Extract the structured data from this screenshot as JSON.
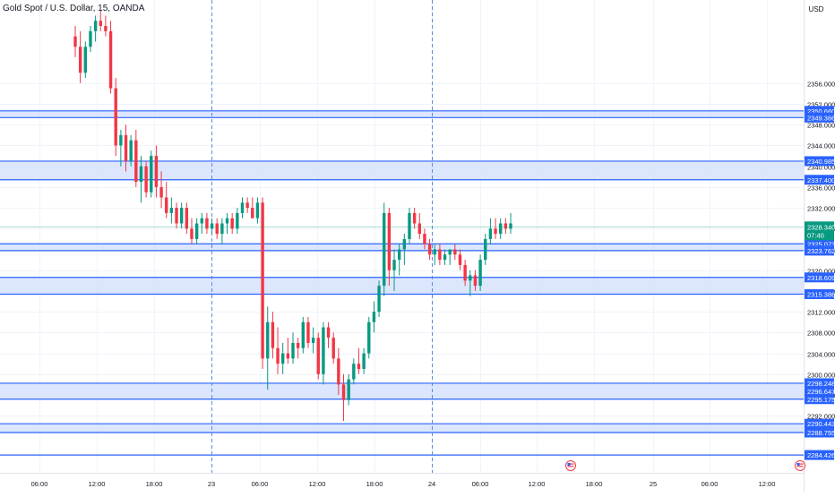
{
  "symbol": {
    "title": "Gold Spot / U.S. Dollar, 15, OANDA"
  },
  "currency": "USD",
  "colors": {
    "up": "#089981",
    "down": "#f23645",
    "zone_fill": "#d6e2fb",
    "zone_line": "#2962ff",
    "label_bg": "#2962ff",
    "price_label_bg": "#089981",
    "grid": "#f0f3fa",
    "session_line": "#5b8cdf",
    "axis_text": "#131722"
  },
  "chart_data": {
    "type": "candlestick",
    "title": "Gold Spot / U.S. Dollar, 15, OANDA",
    "ylim": [
      2281,
      2372
    ],
    "y_ticks": [
      2292,
      2296,
      2300,
      2304,
      2308,
      2312,
      2316,
      2320,
      2324,
      2328,
      2332,
      2336,
      2340,
      2344,
      2348,
      2352,
      2356
    ],
    "x_ticks": [
      "06:00",
      "12:00",
      "18:00",
      "23",
      "06:00",
      "12:00",
      "18:00",
      "24",
      "06:00",
      "12:00",
      "18:00",
      "25",
      "06:00",
      "12:00"
    ],
    "session_separators": [
      "23",
      "24"
    ],
    "last_price": "2328.340",
    "countdown": "07:40",
    "zones": [
      {
        "label_top": "2350.660",
        "label_bottom": "2349.366",
        "top": 2350.66,
        "bottom": 2349.366
      },
      {
        "label_top": "2340.985",
        "label_bottom": "2337.400",
        "top": 2340.985,
        "bottom": 2337.4
      },
      {
        "label_top": "2325.073",
        "label_bottom": "2323.762",
        "top": 2325.073,
        "bottom": 2323.762
      },
      {
        "label_top": "2318.609",
        "label_bottom": "2315.386",
        "top": 2318.609,
        "bottom": 2315.386
      },
      {
        "label_top": "2298.248",
        "label_bottom": "2295.175",
        "top": 2298.248,
        "bottom": 2295.175
      },
      {
        "label_top": "2290.443",
        "label_bottom": "2288.755",
        "top": 2290.443,
        "bottom": 2288.755
      },
      {
        "label_top": "2284.426",
        "label_bottom": "",
        "top": 2284.426,
        "bottom": 2284.426
      }
    ],
    "extra_label": "2296.647",
    "event_icons": [
      "us-flag-icon",
      "us-flag-icon"
    ],
    "candles": [
      {
        "o": 2365,
        "h": 2367,
        "l": 2361,
        "c": 2363
      },
      {
        "o": 2363,
        "h": 2366,
        "l": 2356,
        "c": 2358
      },
      {
        "o": 2358,
        "h": 2364,
        "l": 2357,
        "c": 2363
      },
      {
        "o": 2363,
        "h": 2367,
        "l": 2362,
        "c": 2366
      },
      {
        "o": 2366,
        "h": 2369,
        "l": 2364,
        "c": 2368
      },
      {
        "o": 2368,
        "h": 2370,
        "l": 2366,
        "c": 2367
      },
      {
        "o": 2367,
        "h": 2369,
        "l": 2365,
        "c": 2366
      },
      {
        "o": 2366,
        "h": 2368,
        "l": 2354,
        "c": 2355
      },
      {
        "o": 2355,
        "h": 2357,
        "l": 2342,
        "c": 2344
      },
      {
        "o": 2344,
        "h": 2347,
        "l": 2340,
        "c": 2346
      },
      {
        "o": 2346,
        "h": 2348,
        "l": 2339,
        "c": 2341
      },
      {
        "o": 2341,
        "h": 2346,
        "l": 2340,
        "c": 2345
      },
      {
        "o": 2345,
        "h": 2347,
        "l": 2336,
        "c": 2337
      },
      {
        "o": 2337,
        "h": 2342,
        "l": 2333,
        "c": 2340
      },
      {
        "o": 2340,
        "h": 2341,
        "l": 2334,
        "c": 2335
      },
      {
        "o": 2335,
        "h": 2343,
        "l": 2334,
        "c": 2342
      },
      {
        "o": 2342,
        "h": 2344,
        "l": 2334,
        "c": 2336
      },
      {
        "o": 2336,
        "h": 2339,
        "l": 2332,
        "c": 2334
      },
      {
        "o": 2334,
        "h": 2337,
        "l": 2330,
        "c": 2331
      },
      {
        "o": 2331,
        "h": 2334,
        "l": 2329,
        "c": 2332
      },
      {
        "o": 2332,
        "h": 2333,
        "l": 2328,
        "c": 2329
      },
      {
        "o": 2329,
        "h": 2333,
        "l": 2328,
        "c": 2332
      },
      {
        "o": 2332,
        "h": 2333,
        "l": 2327,
        "c": 2328
      },
      {
        "o": 2328,
        "h": 2330,
        "l": 2325,
        "c": 2326
      },
      {
        "o": 2326,
        "h": 2330,
        "l": 2325,
        "c": 2329
      },
      {
        "o": 2329,
        "h": 2331,
        "l": 2327,
        "c": 2330
      },
      {
        "o": 2330,
        "h": 2331,
        "l": 2327,
        "c": 2328
      },
      {
        "o": 2328,
        "h": 2330,
        "l": 2327,
        "c": 2329
      },
      {
        "o": 2329,
        "h": 2330,
        "l": 2326,
        "c": 2327
      },
      {
        "o": 2327,
        "h": 2330,
        "l": 2325,
        "c": 2329
      },
      {
        "o": 2329,
        "h": 2331,
        "l": 2327,
        "c": 2330
      },
      {
        "o": 2330,
        "h": 2331,
        "l": 2327,
        "c": 2328
      },
      {
        "o": 2328,
        "h": 2332,
        "l": 2327,
        "c": 2331
      },
      {
        "o": 2331,
        "h": 2334,
        "l": 2330,
        "c": 2333
      },
      {
        "o": 2333,
        "h": 2334,
        "l": 2331,
        "c": 2332
      },
      {
        "o": 2332,
        "h": 2334,
        "l": 2330,
        "c": 2330
      },
      {
        "o": 2330,
        "h": 2334,
        "l": 2329,
        "c": 2333
      },
      {
        "o": 2333,
        "h": 2334,
        "l": 2301,
        "c": 2303
      },
      {
        "o": 2303,
        "h": 2313,
        "l": 2297,
        "c": 2310
      },
      {
        "o": 2310,
        "h": 2312,
        "l": 2303,
        "c": 2305
      },
      {
        "o": 2305,
        "h": 2309,
        "l": 2300,
        "c": 2302
      },
      {
        "o": 2302,
        "h": 2306,
        "l": 2300,
        "c": 2304
      },
      {
        "o": 2304,
        "h": 2307,
        "l": 2302,
        "c": 2303
      },
      {
        "o": 2303,
        "h": 2308,
        "l": 2302,
        "c": 2306
      },
      {
        "o": 2306,
        "h": 2307,
        "l": 2303,
        "c": 2305
      },
      {
        "o": 2305,
        "h": 2311,
        "l": 2304,
        "c": 2310
      },
      {
        "o": 2310,
        "h": 2311,
        "l": 2305,
        "c": 2306
      },
      {
        "o": 2306,
        "h": 2309,
        "l": 2304,
        "c": 2307
      },
      {
        "o": 2307,
        "h": 2308,
        "l": 2299,
        "c": 2300
      },
      {
        "o": 2300,
        "h": 2310,
        "l": 2298,
        "c": 2309
      },
      {
        "o": 2309,
        "h": 2310,
        "l": 2305,
        "c": 2307
      },
      {
        "o": 2307,
        "h": 2308,
        "l": 2302,
        "c": 2303
      },
      {
        "o": 2303,
        "h": 2305,
        "l": 2296,
        "c": 2298
      },
      {
        "o": 2298,
        "h": 2300,
        "l": 2291,
        "c": 2295
      },
      {
        "o": 2295,
        "h": 2300,
        "l": 2294,
        "c": 2299
      },
      {
        "o": 2299,
        "h": 2303,
        "l": 2298,
        "c": 2302
      },
      {
        "o": 2302,
        "h": 2305,
        "l": 2300,
        "c": 2301
      },
      {
        "o": 2301,
        "h": 2305,
        "l": 2300,
        "c": 2304
      },
      {
        "o": 2304,
        "h": 2311,
        "l": 2303,
        "c": 2310
      },
      {
        "o": 2310,
        "h": 2314,
        "l": 2308,
        "c": 2312
      },
      {
        "o": 2312,
        "h": 2318,
        "l": 2311,
        "c": 2317
      },
      {
        "o": 2317,
        "h": 2333,
        "l": 2315,
        "c": 2331
      },
      {
        "o": 2331,
        "h": 2332,
        "l": 2317,
        "c": 2320
      },
      {
        "o": 2320,
        "h": 2324,
        "l": 2316,
        "c": 2322
      },
      {
        "o": 2322,
        "h": 2325,
        "l": 2319,
        "c": 2324
      },
      {
        "o": 2324,
        "h": 2327,
        "l": 2321,
        "c": 2326
      },
      {
        "o": 2326,
        "h": 2332,
        "l": 2325,
        "c": 2331
      },
      {
        "o": 2331,
        "h": 2332,
        "l": 2328,
        "c": 2329
      },
      {
        "o": 2329,
        "h": 2331,
        "l": 2326,
        "c": 2327
      },
      {
        "o": 2327,
        "h": 2328,
        "l": 2324,
        "c": 2325
      },
      {
        "o": 2325,
        "h": 2326,
        "l": 2322,
        "c": 2323
      },
      {
        "o": 2323,
        "h": 2325,
        "l": 2321,
        "c": 2324
      },
      {
        "o": 2324,
        "h": 2325,
        "l": 2321,
        "c": 2322
      },
      {
        "o": 2322,
        "h": 2324,
        "l": 2321,
        "c": 2323
      },
      {
        "o": 2323,
        "h": 2324,
        "l": 2321,
        "c": 2324
      },
      {
        "o": 2324,
        "h": 2325,
        "l": 2322,
        "c": 2323
      },
      {
        "o": 2323,
        "h": 2324,
        "l": 2320,
        "c": 2321
      },
      {
        "o": 2321,
        "h": 2322,
        "l": 2317,
        "c": 2318
      },
      {
        "o": 2318,
        "h": 2320,
        "l": 2315,
        "c": 2319
      },
      {
        "o": 2319,
        "h": 2320,
        "l": 2316,
        "c": 2317
      },
      {
        "o": 2317,
        "h": 2323,
        "l": 2316,
        "c": 2322
      },
      {
        "o": 2322,
        "h": 2327,
        "l": 2321,
        "c": 2326
      },
      {
        "o": 2326,
        "h": 2330,
        "l": 2325,
        "c": 2328
      },
      {
        "o": 2328,
        "h": 2330,
        "l": 2326,
        "c": 2327
      },
      {
        "o": 2327,
        "h": 2330,
        "l": 2326,
        "c": 2329
      },
      {
        "o": 2329,
        "h": 2330,
        "l": 2327,
        "c": 2328
      },
      {
        "o": 2328,
        "h": 2331,
        "l": 2327,
        "c": 2329
      }
    ]
  }
}
